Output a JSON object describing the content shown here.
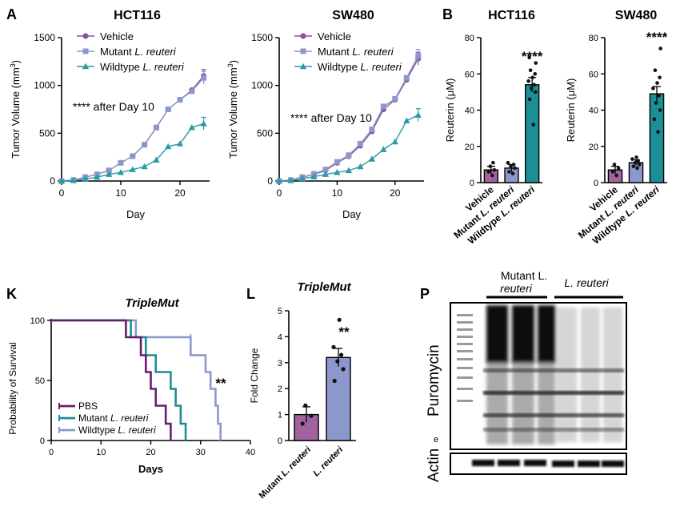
{
  "colors": {
    "vehicle": "#8b4f9c",
    "mutant": "#8c97cc",
    "wildtype": "#2a9aa6",
    "bar_vehicle": "#a0639f",
    "bar_mutant": "#8c97cc",
    "bar_wildtype": "#1b8f98",
    "km_pbs": "#6a1d6e",
    "km_mutant": "#1b8f98",
    "km_wildtype": "#8c97cc",
    "l_mutant": "#a0639f",
    "l_wild": "#8c97cc"
  },
  "panels": {
    "A": "A",
    "B": "B",
    "K": "K",
    "L": "L",
    "P": "P"
  },
  "chart_data": [
    {
      "id": "A_HCT116",
      "type": "line",
      "title": "HCT116",
      "xlabel": "Day",
      "ylabel_main": "Tumor Volume (mm",
      "ylabel_sup": "3",
      "ylabel_end": ")",
      "xlim": [
        0,
        25
      ],
      "ylim": [
        0,
        1500
      ],
      "xticks": [
        0,
        10,
        20
      ],
      "yticks": [
        0,
        500,
        1000,
        1500
      ],
      "x": [
        0,
        2,
        4,
        6,
        8,
        10,
        12,
        14,
        16,
        18,
        20,
        22,
        24
      ],
      "series": [
        {
          "name": "Vehicle",
          "italic": "",
          "values": [
            0,
            10,
            40,
            70,
            110,
            190,
            260,
            380,
            560,
            750,
            850,
            950,
            1100
          ]
        },
        {
          "name": "Mutant ",
          "italic": "L. reuteri",
          "values": [
            0,
            10,
            40,
            70,
            110,
            190,
            260,
            380,
            560,
            750,
            850,
            940,
            1080
          ]
        },
        {
          "name": "Wildtype ",
          "italic": "L. reuteri",
          "values": [
            0,
            5,
            20,
            40,
            70,
            90,
            120,
            150,
            220,
            360,
            390,
            560,
            600
          ]
        }
      ],
      "annotation": "**** after Day 10"
    },
    {
      "id": "A_SW480",
      "type": "line",
      "title": "SW480",
      "xlabel": "Day",
      "ylabel_main": "Tumor Volume (mm",
      "ylabel_sup": "3",
      "ylabel_end": ")",
      "xlim": [
        0,
        25
      ],
      "ylim": [
        0,
        1500
      ],
      "xticks": [
        0,
        10,
        20
      ],
      "yticks": [
        0,
        500,
        1000,
        1500
      ],
      "x": [
        0,
        2,
        4,
        6,
        8,
        10,
        12,
        14,
        16,
        18,
        20,
        22,
        24
      ],
      "series": [
        {
          "name": "Vehicle",
          "italic": "",
          "values": [
            0,
            10,
            40,
            70,
            110,
            190,
            260,
            370,
            520,
            750,
            850,
            1060,
            1280
          ]
        },
        {
          "name": "Mutant ",
          "italic": "L. reuteri",
          "values": [
            0,
            10,
            40,
            75,
            120,
            200,
            270,
            390,
            540,
            780,
            860,
            1080,
            1310
          ]
        },
        {
          "name": "Wildtype ",
          "italic": "L. reuteri",
          "values": [
            0,
            5,
            25,
            45,
            70,
            90,
            110,
            150,
            230,
            330,
            410,
            630,
            690
          ]
        }
      ],
      "annotation": "**** after Day 10"
    },
    {
      "id": "B_HCT116",
      "type": "bar",
      "title": "HCT116",
      "ylabel": "Reuterin (μM)",
      "ylim": [
        0,
        80
      ],
      "yticks": [
        0,
        20,
        40,
        60,
        80
      ],
      "categories": [
        {
          "name": "Vehicle",
          "italic": ""
        },
        {
          "name": "Mutant ",
          "italic": "L. reuteri"
        },
        {
          "name": "Wildtype ",
          "italic": "L. reuteri"
        }
      ],
      "values": [
        7,
        8,
        54
      ],
      "errors": [
        2,
        2,
        4
      ],
      "points": [
        [
          4,
          6,
          7,
          9,
          11
        ],
        [
          5,
          6,
          8,
          9,
          10,
          11
        ],
        [
          32,
          46,
          50,
          52,
          54,
          56,
          58,
          60,
          62,
          66,
          69
        ]
      ],
      "significance": "****"
    },
    {
      "id": "B_SW480",
      "type": "bar",
      "title": "SW480",
      "ylabel": "Reuterin (μM)",
      "ylim": [
        0,
        80
      ],
      "yticks": [
        0,
        20,
        40,
        60,
        80
      ],
      "categories": [
        {
          "name": "Vehicle",
          "italic": ""
        },
        {
          "name": "Mutant ",
          "italic": "L. reuteri"
        },
        {
          "name": "Wildtype ",
          "italic": "L. reuteri"
        }
      ],
      "values": [
        7,
        11,
        49
      ],
      "errors": [
        2,
        1.5,
        4
      ],
      "points": [
        [
          4,
          6,
          8,
          10
        ],
        [
          8,
          9,
          10,
          11,
          12,
          13,
          14
        ],
        [
          28,
          35,
          40,
          44,
          48,
          52,
          55,
          58,
          62,
          74
        ]
      ],
      "significance": "****"
    },
    {
      "id": "K_survival",
      "type": "line",
      "subtype": "kaplan-meier",
      "title": "TripleMut",
      "xlabel": "Days",
      "ylabel": "Probability of Survival",
      "xlim": [
        0,
        40
      ],
      "ylim": [
        0,
        100
      ],
      "xticks": [
        0,
        10,
        20,
        30,
        40
      ],
      "yticks": [
        0,
        50,
        100
      ],
      "series": [
        {
          "name": "PBS",
          "italic": "",
          "steps": [
            [
              0,
              100
            ],
            [
              15,
              100
            ],
            [
              15,
              86
            ],
            [
              18,
              86
            ],
            [
              18,
              71
            ],
            [
              19,
              71
            ],
            [
              19,
              57
            ],
            [
              20,
              57
            ],
            [
              20,
              43
            ],
            [
              21,
              43
            ],
            [
              21,
              29
            ],
            [
              23,
              29
            ],
            [
              23,
              14
            ],
            [
              24,
              14
            ],
            [
              24,
              0
            ]
          ]
        },
        {
          "name": "Mutant ",
          "italic": "L. reuteri",
          "steps": [
            [
              0,
              100
            ],
            [
              16,
              100
            ],
            [
              16,
              86
            ],
            [
              19,
              86
            ],
            [
              19,
              71
            ],
            [
              21,
              71
            ],
            [
              21,
              57
            ],
            [
              24,
              57
            ],
            [
              24,
              43
            ],
            [
              25,
              43
            ],
            [
              25,
              29
            ],
            [
              26,
              29
            ],
            [
              26,
              14
            ],
            [
              27,
              14
            ],
            [
              27,
              0
            ]
          ]
        },
        {
          "name": "Wildtype ",
          "italic": "L. reuteri",
          "steps": [
            [
              0,
              100
            ],
            [
              17,
              100
            ],
            [
              17,
              86
            ],
            [
              28,
              86
            ],
            [
              28,
              71
            ],
            [
              31,
              71
            ],
            [
              31,
              57
            ],
            [
              32,
              57
            ],
            [
              32,
              43
            ],
            [
              33,
              43
            ],
            [
              33,
              29
            ],
            [
              33.5,
              29
            ],
            [
              33.5,
              14
            ],
            [
              34,
              14
            ],
            [
              34,
              0
            ]
          ]
        }
      ],
      "censor_marks": [
        [
          28,
          86
        ]
      ],
      "significance": "**"
    },
    {
      "id": "L_fold",
      "type": "bar",
      "title": "TripleMut",
      "ylabel": "Fold Change",
      "ylim": [
        0,
        5
      ],
      "yticks": [
        0,
        1,
        2,
        3,
        4,
        5
      ],
      "categories": [
        {
          "name": "Mutant ",
          "italic": "L. reuteri"
        },
        {
          "name": "",
          "italic": "L. reuteri"
        }
      ],
      "values": [
        1.0,
        3.2
      ],
      "errors": [
        0.3,
        0.35
      ],
      "points": [
        [
          0.65,
          0.95,
          1.35
        ],
        [
          2.3,
          2.75,
          3.05,
          3.3,
          3.6,
          4.65
        ]
      ],
      "significance": "**"
    }
  ],
  "blot": {
    "label_mutant_1": "Mutant L.",
    "label_mutant_2": "reuteri",
    "label_wild": "L. reuteri",
    "label_puromycin": "Puromycin",
    "label_actin": "Actin"
  }
}
